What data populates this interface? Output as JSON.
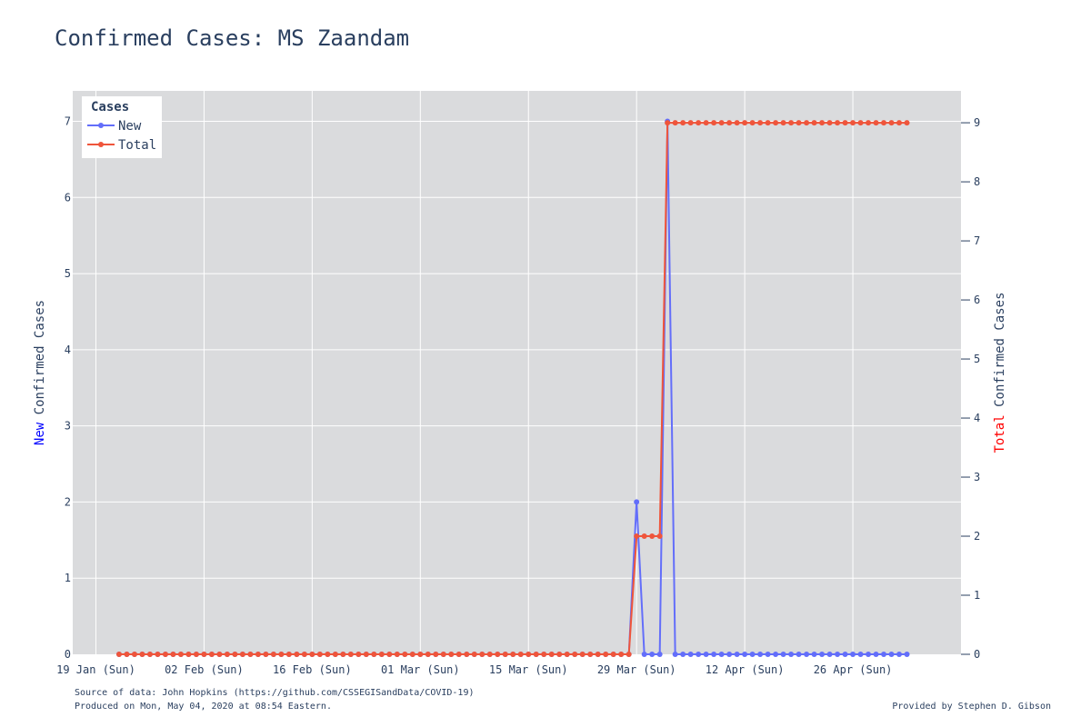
{
  "chart_data": {
    "type": "line",
    "title": "Confirmed Cases: MS Zaandam",
    "x_tick_labels": [
      "19 Jan (Sun)",
      "02 Feb (Sun)",
      "16 Feb (Sun)",
      "01 Mar (Sun)",
      "15 Mar (Sun)",
      "29 Mar (Sun)",
      "12 Apr (Sun)",
      "26 Apr (Sun)"
    ],
    "x_tick_dates": [
      "2020-01-19",
      "2020-02-02",
      "2020-02-16",
      "2020-03-01",
      "2020-03-15",
      "2020-03-29",
      "2020-04-12",
      "2020-04-26"
    ],
    "xlim": [
      "2020-01-16",
      "2020-05-10"
    ],
    "x_start": "2020-01-22",
    "x_end": "2020-05-03",
    "y_left": {
      "label_prefix": "New",
      "label_rest": " Confirmed Cases",
      "prefix_color": "#0000ff",
      "ylim": [
        0,
        7.4
      ],
      "ticks": [
        0,
        1,
        2,
        3,
        4,
        5,
        6,
        7
      ]
    },
    "y_right": {
      "label_prefix": "Total",
      "label_rest": " Confirmed Cases",
      "prefix_color": "#ff0000",
      "ylim": [
        0,
        9.54
      ],
      "ticks": [
        0,
        1,
        2,
        3,
        4,
        5,
        6,
        7,
        8,
        9
      ]
    },
    "grid": true,
    "legend": {
      "title": "Cases",
      "position": "top-left"
    },
    "series": [
      {
        "name": "New",
        "axis": "left",
        "color": "#636efa",
        "points": [
          [
            "2020-01-22",
            0
          ],
          [
            "2020-03-28",
            0
          ],
          [
            "2020-03-29",
            2
          ],
          [
            "2020-03-30",
            0
          ],
          [
            "2020-03-31",
            0
          ],
          [
            "2020-04-01",
            0
          ],
          [
            "2020-04-02",
            7
          ],
          [
            "2020-04-03",
            0
          ],
          [
            "2020-05-03",
            0
          ]
        ]
      },
      {
        "name": "Total",
        "axis": "right",
        "color": "#ef553b",
        "points": [
          [
            "2020-01-22",
            0
          ],
          [
            "2020-03-28",
            0
          ],
          [
            "2020-03-29",
            2
          ],
          [
            "2020-03-30",
            2
          ],
          [
            "2020-03-31",
            2
          ],
          [
            "2020-04-01",
            2
          ],
          [
            "2020-04-02",
            9
          ],
          [
            "2020-05-03",
            9
          ]
        ]
      }
    ]
  },
  "footer": {
    "source": "Source of data: John Hopkins (https://github.com/CSSEGISandData/COVID-19)",
    "produced": "Produced on Mon, May 04, 2020 at 08:54 Eastern.",
    "provided": "Provided by Stephen D. Gibson"
  },
  "colors": {
    "plot_bg": "#dadbdd",
    "grid": "#ffffff",
    "text": "#2a3f5f"
  }
}
